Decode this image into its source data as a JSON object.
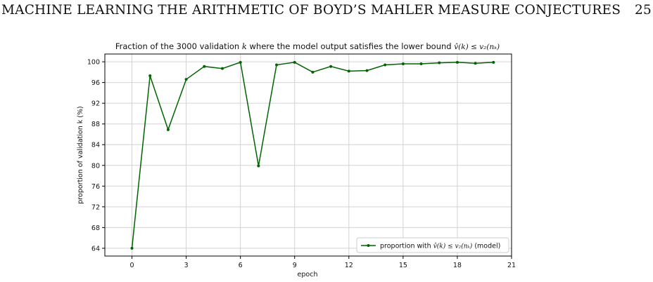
{
  "page": {
    "running_header": "MACHINE LEARNING THE ARITHMETIC OF BOYD’S MAHLER MEASURE CONJECTURES",
    "page_number": "25"
  },
  "figure": {
    "title_prefix": "Fraction of the 3000 validation ",
    "title_k": "k",
    "title_middle": " where the model output satisfies the lower bound ",
    "title_math": "v̂(k) ≤ v₂(nₖ)",
    "legend_label_prefix": "proportion with ",
    "legend_label_math": "v̂(k) ≤ v₂(nₖ)",
    "legend_label_suffix": " (model)"
  },
  "colors": {
    "series": "#006400",
    "grid": "#d3d3d3"
  },
  "chart_data": {
    "type": "line",
    "xlabel": "epoch",
    "ylabel": "proportion of validation k  (%)",
    "xlim": [
      -1.5,
      21
    ],
    "ylim": [
      62.5,
      101.5
    ],
    "xticks": [
      0,
      3,
      6,
      9,
      12,
      15,
      18,
      21
    ],
    "yticks": [
      64,
      68,
      72,
      76,
      80,
      84,
      88,
      92,
      96,
      100
    ],
    "grid": true,
    "legend_position": "lower-right",
    "series": [
      {
        "name": "proportion with v̂(k) ≤ v₂(nₖ) (model)",
        "x": [
          0,
          1,
          2,
          3,
          4,
          5,
          6,
          7,
          8,
          9,
          10,
          11,
          12,
          13,
          14,
          15,
          16,
          17,
          18,
          19,
          20
        ],
        "y": [
          64.0,
          97.3,
          86.9,
          96.6,
          99.1,
          98.7,
          99.9,
          79.9,
          99.4,
          99.9,
          98.0,
          99.1,
          98.2,
          98.3,
          99.4,
          99.6,
          99.6,
          99.8,
          99.9,
          99.7,
          99.9
        ]
      }
    ]
  }
}
